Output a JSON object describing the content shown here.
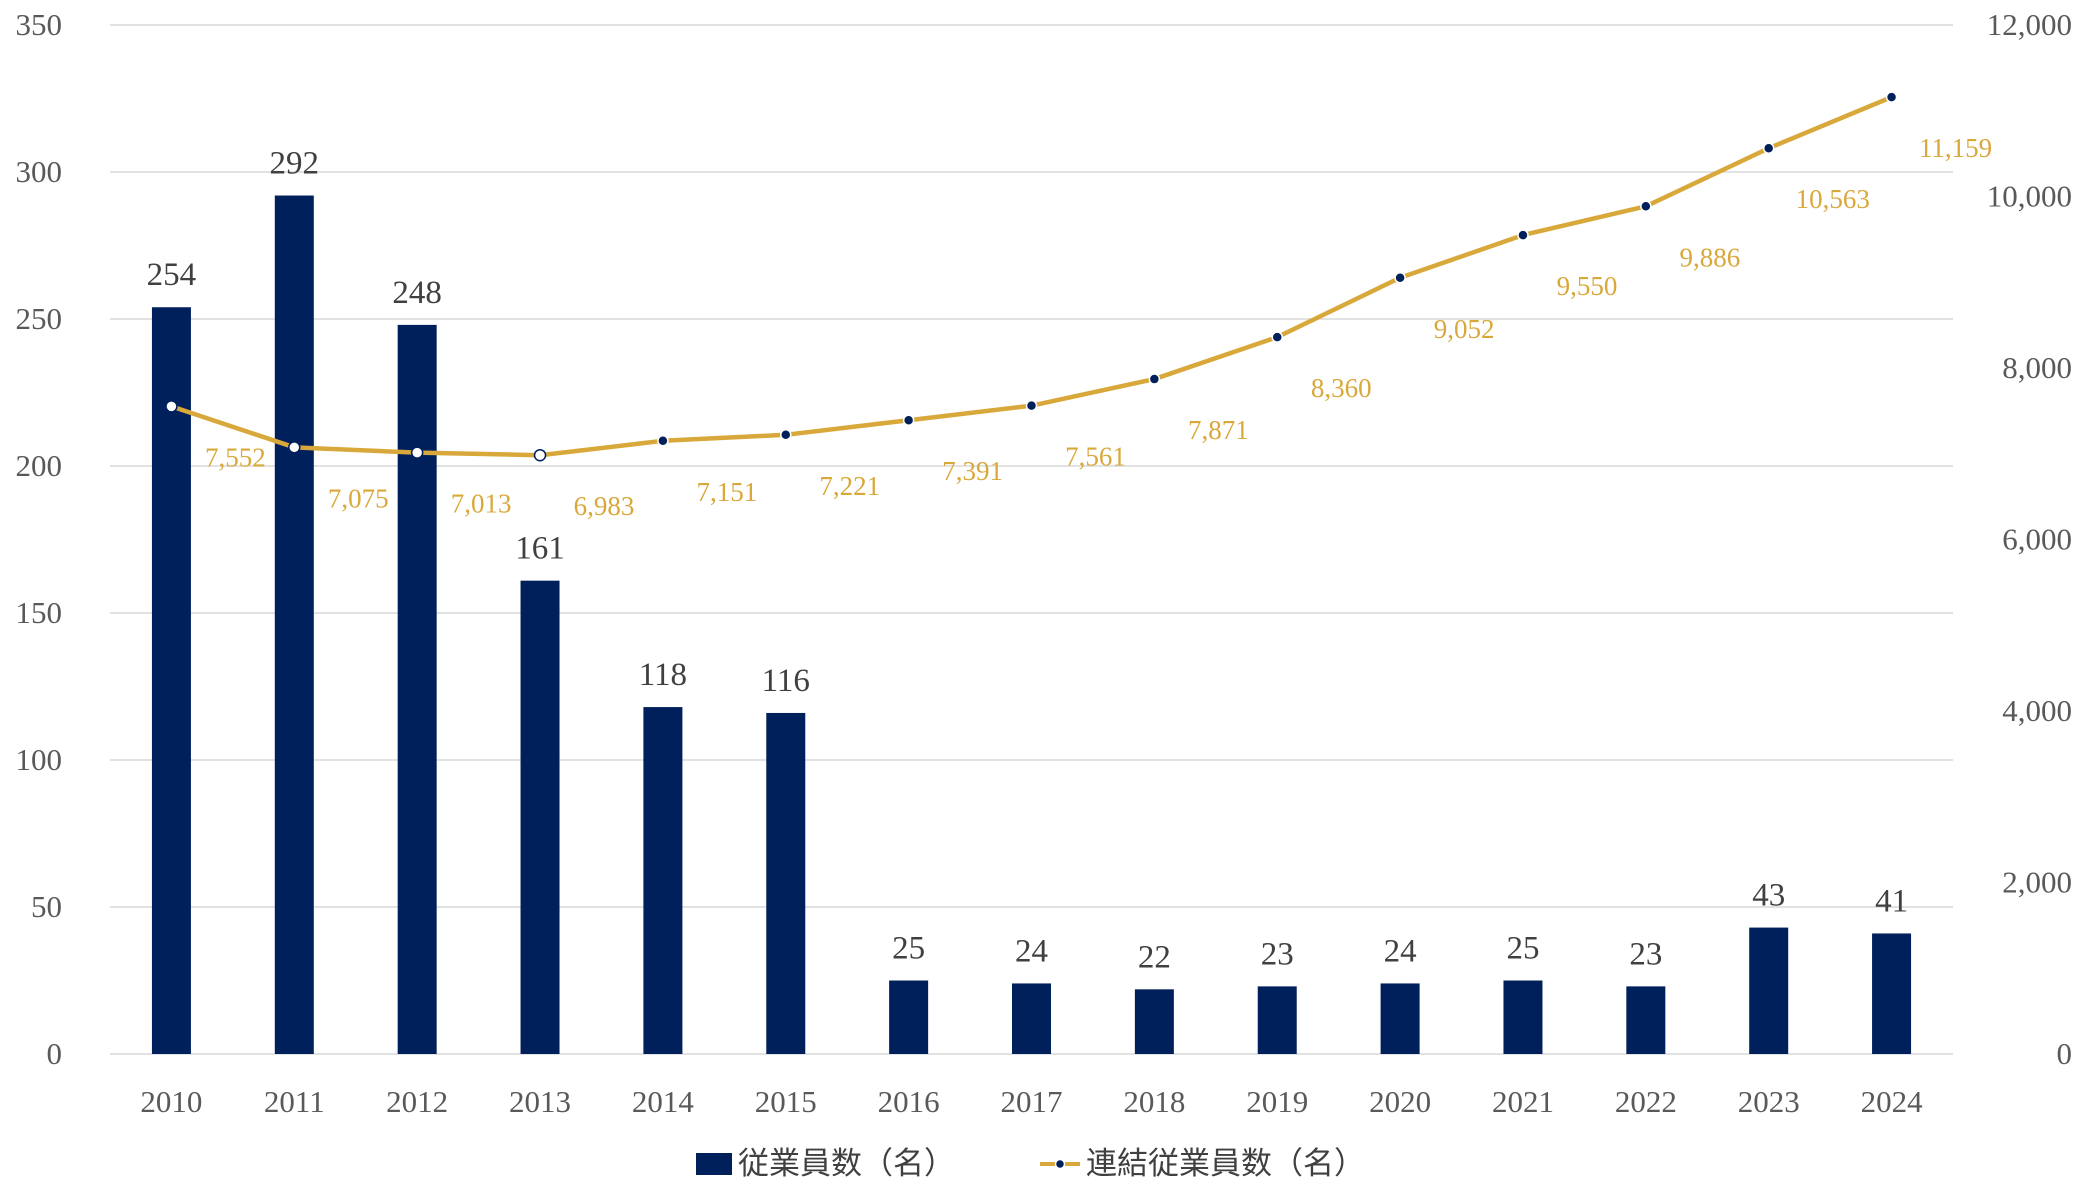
{
  "chart_data": {
    "type": "bar",
    "categories": [
      "2010",
      "2011",
      "2012",
      "2013",
      "2014",
      "2015",
      "2016",
      "2017",
      "2018",
      "2019",
      "2020",
      "2021",
      "2022",
      "2023",
      "2024"
    ],
    "series": [
      {
        "name": "従業員数（名）",
        "type": "bar",
        "axis": "left",
        "values": [
          254,
          292,
          248,
          161,
          118,
          116,
          25,
          24,
          22,
          23,
          24,
          25,
          23,
          43,
          41
        ],
        "labels": [
          "254",
          "292",
          "248",
          "161",
          "118",
          "116",
          "25",
          "24",
          "22",
          "23",
          "24",
          "25",
          "23",
          "43",
          "41"
        ],
        "color": "#00205B"
      },
      {
        "name": "連結従業員数（名）",
        "type": "line",
        "axis": "right",
        "values": [
          7552,
          7075,
          7013,
          6983,
          7151,
          7221,
          7391,
          7561,
          7871,
          8360,
          9052,
          9550,
          9886,
          10563,
          11159
        ],
        "labels": [
          "7,552",
          "7,075",
          "7,013",
          "6,983",
          "7,151",
          "7,221",
          "7,391",
          "7,561",
          "7,871",
          "8,360",
          "9,052",
          "9,550",
          "9,886",
          "10,563",
          "11,159"
        ],
        "color": "#D9A83A"
      }
    ],
    "y_left": {
      "min": 0,
      "max": 350,
      "ticks": [
        0,
        50,
        100,
        150,
        200,
        250,
        300,
        350
      ],
      "tick_labels": [
        "0",
        "50",
        "100",
        "150",
        "200",
        "250",
        "300",
        "350"
      ]
    },
    "y_right": {
      "min": 0,
      "max": 12000,
      "ticks": [
        0,
        2000,
        4000,
        6000,
        8000,
        10000,
        12000
      ],
      "tick_labels": [
        "0",
        "2,000",
        "4,000",
        "6,000",
        "8,000",
        "10,000",
        "12,000"
      ]
    },
    "grid": true,
    "legend_position": "bottom",
    "title": "",
    "xlabel": "",
    "ylabel": ""
  },
  "legend": {
    "bar_label": "従業員数（名）",
    "line_label": "連結従業員数（名）"
  },
  "colors": {
    "bar": "#00205B",
    "line": "#D9A83A",
    "grid": "#D9D9D9",
    "marker_fill_early": "#ffffff",
    "marker_fill_late": "#00205B"
  }
}
